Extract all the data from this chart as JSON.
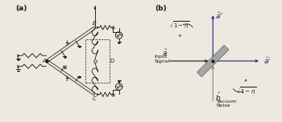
{
  "fig_width": 3.5,
  "fig_height": 1.52,
  "dpi": 100,
  "bg_color": "#ede8e0",
  "dark_color": "#1a1a1a",
  "blue_color": "#1a2878",
  "gray_color": "#808080",
  "panel_a_label": "(a)",
  "panel_b_label": "(b)",
  "A_label": "A",
  "B_label": "B",
  "C_label": "C",
  "D_label": "D",
  "lambda_label": "λ\n4",
  "input_signal": "Input\nSignal",
  "vacuum_noise": "Vacuum\nNoise"
}
